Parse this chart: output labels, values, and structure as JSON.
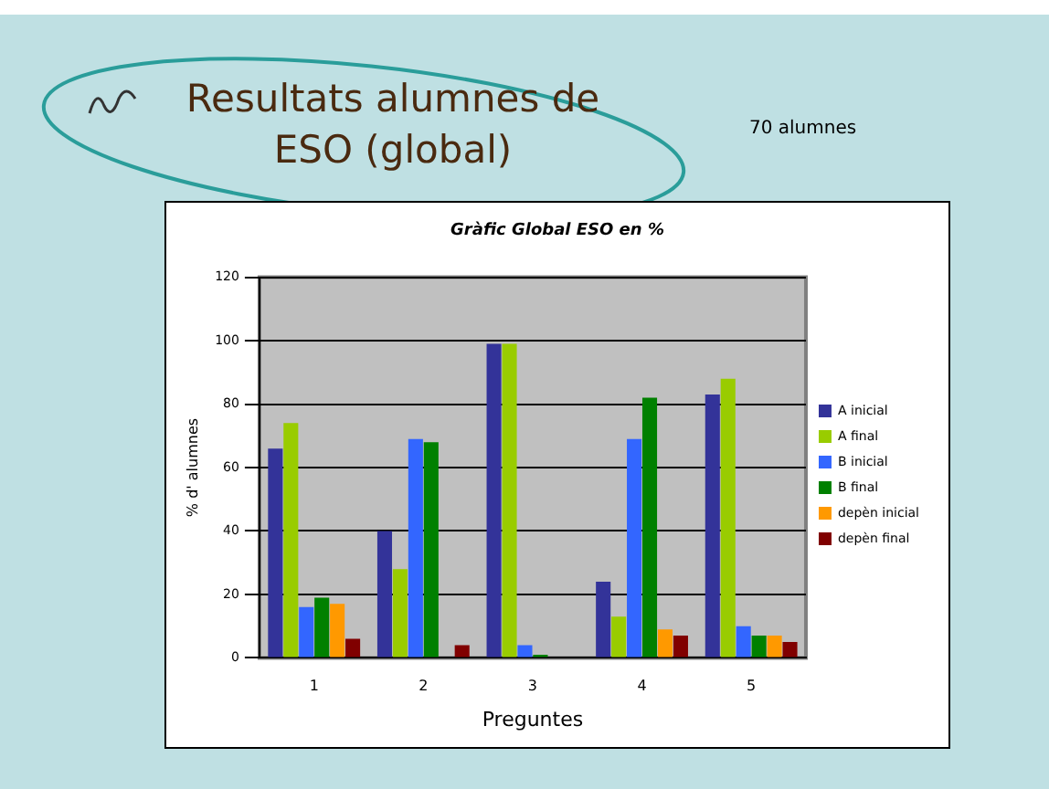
{
  "chart_data": {
    "type": "bar",
    "title": "Gràfic Global ESO en %",
    "xlabel": "Preguntes",
    "ylabel": "% d' alumnes",
    "annotations": [
      "Resultats alumnes de ESO (global)",
      "70 alumnes"
    ],
    "categories": [
      "1",
      "2",
      "3",
      "4",
      "5"
    ],
    "series": [
      {
        "name": "A inicial",
        "color": "#333399",
        "values": [
          66,
          40,
          99,
          24,
          83
        ]
      },
      {
        "name": "A final",
        "color": "#99cc00",
        "values": [
          74,
          28,
          99,
          13,
          88
        ]
      },
      {
        "name": "B inicial",
        "color": "#3366ff",
        "values": [
          16,
          69,
          4,
          69,
          10
        ]
      },
      {
        "name": "B final",
        "color": "#008000",
        "values": [
          19,
          68,
          1,
          82,
          7
        ]
      },
      {
        "name": "depèn inicial",
        "color": "#ff9900",
        "values": [
          17,
          0,
          0,
          9,
          7
        ]
      },
      {
        "name": "depèn final",
        "color": "#800000",
        "values": [
          6,
          4,
          0,
          7,
          5
        ]
      }
    ],
    "ylim": [
      0,
      120
    ],
    "yticks": [
      0,
      20,
      40,
      60,
      80,
      100,
      120
    ],
    "grid": "y",
    "legend": "right"
  }
}
